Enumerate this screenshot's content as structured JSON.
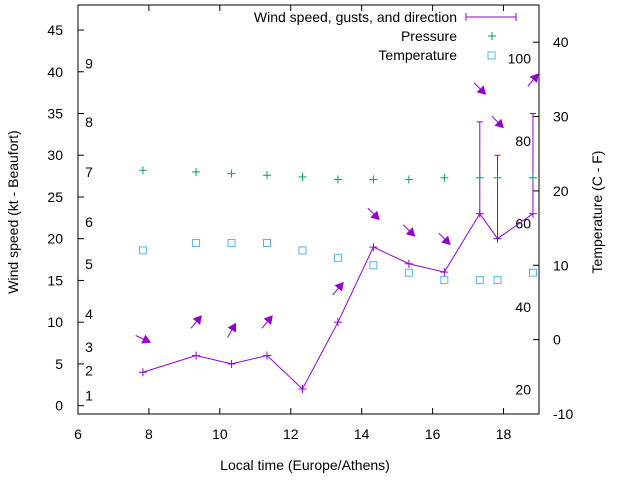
{
  "chart_data": {
    "type": "line",
    "xlabel": "Local time (Europe/Athens)",
    "ylabel": "Wind speed (kt - Beaufort)",
    "y2label": "Temperature (C - F)",
    "xlim": [
      6,
      19
    ],
    "ylim": [
      -1,
      48
    ],
    "y2lim": [
      -10,
      45
    ],
    "x_ticks": [
      6,
      8,
      10,
      12,
      14,
      16,
      18
    ],
    "y_ticks": [
      0,
      5,
      10,
      15,
      20,
      25,
      30,
      35,
      40,
      45
    ],
    "y2_ticks": [
      -10,
      0,
      10,
      20,
      30,
      40
    ],
    "beaufort_labels": [
      {
        "label": "1",
        "y": 1.2
      },
      {
        "label": "2",
        "y": 4.2
      },
      {
        "label": "3",
        "y": 7.0
      },
      {
        "label": "4",
        "y": 11.0
      },
      {
        "label": "5",
        "y": 17.0
      },
      {
        "label": "6",
        "y": 22.0
      },
      {
        "label": "7",
        "y": 28.0
      },
      {
        "label": "8",
        "y": 34.0
      },
      {
        "label": "9",
        "y": 41.0
      }
    ],
    "fahrenheit_labels": [
      {
        "label": "20",
        "temp": -6.7
      },
      {
        "label": "40",
        "temp": 4.4
      },
      {
        "label": "60",
        "temp": 15.6
      },
      {
        "label": "80",
        "temp": 26.7
      },
      {
        "label": "100",
        "temp": 37.8
      }
    ],
    "legend_position": "top-right",
    "series": [
      {
        "name": "Wind speed, gusts, and direction",
        "color": "#9400d3",
        "x": [
          7.83,
          9.33,
          10.33,
          11.33,
          12.33,
          13.33,
          14.33,
          15.33,
          16.33,
          17.33,
          17.83,
          18.83
        ],
        "values": [
          4,
          6,
          5,
          6,
          2,
          10,
          19,
          17,
          16,
          23,
          20,
          23
        ],
        "gusts": [
          null,
          null,
          null,
          null,
          null,
          null,
          null,
          null,
          null,
          34,
          30,
          35
        ],
        "direction_arrows": [
          {
            "x": 7.83,
            "y": 8
          },
          {
            "x": 9.33,
            "y": 10
          },
          {
            "x": 10.33,
            "y": 9
          },
          {
            "x": 11.33,
            "y": 10
          },
          {
            "x": 13.33,
            "y": 14
          },
          {
            "x": 14.33,
            "y": 23
          },
          {
            "x": 15.33,
            "y": 21
          },
          {
            "x": 16.33,
            "y": 20
          },
          {
            "x": 17.33,
            "y": 38
          },
          {
            "x": 17.83,
            "y": 34
          },
          {
            "x": 18.83,
            "y": 39
          }
        ]
      },
      {
        "name": "Pressure",
        "color": "#009e73",
        "x": [
          7.83,
          9.33,
          10.33,
          11.33,
          12.33,
          13.33,
          14.33,
          15.33,
          16.33,
          17.33,
          17.83,
          18.83
        ],
        "values": [
          28.2,
          28.0,
          27.8,
          27.6,
          27.4,
          27.1,
          27.1,
          27.1,
          27.3,
          27.3,
          27.3,
          27.3
        ]
      },
      {
        "name": "Temperature",
        "color": "#56b4e9",
        "axis": "y2",
        "x": [
          7.83,
          9.33,
          10.33,
          11.33,
          12.33,
          13.33,
          14.33,
          15.33,
          16.33,
          17.33,
          17.83,
          18.83
        ],
        "values": [
          12,
          13,
          13,
          13,
          12,
          11,
          10,
          9,
          8,
          8,
          8,
          9
        ]
      }
    ]
  }
}
